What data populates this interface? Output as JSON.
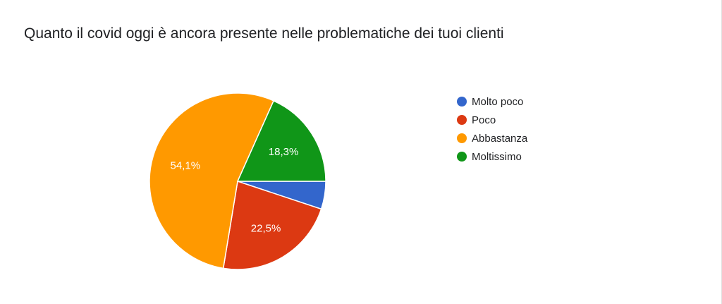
{
  "chart_data": {
    "type": "pie",
    "title": "Quanto il covid oggi è ancora presente nelle problematiche dei tuoi clienti",
    "categories": [
      "Molto poco",
      "Poco",
      "Abbastanza",
      "Moltissimo"
    ],
    "values": [
      5.1,
      22.5,
      54.1,
      18.3
    ],
    "value_labels": [
      "",
      "22,5%",
      "54,1%",
      "18,3%"
    ],
    "colors": [
      "#3366cc",
      "#dc3912",
      "#ff9900",
      "#109618"
    ],
    "legend_position": "right"
  }
}
